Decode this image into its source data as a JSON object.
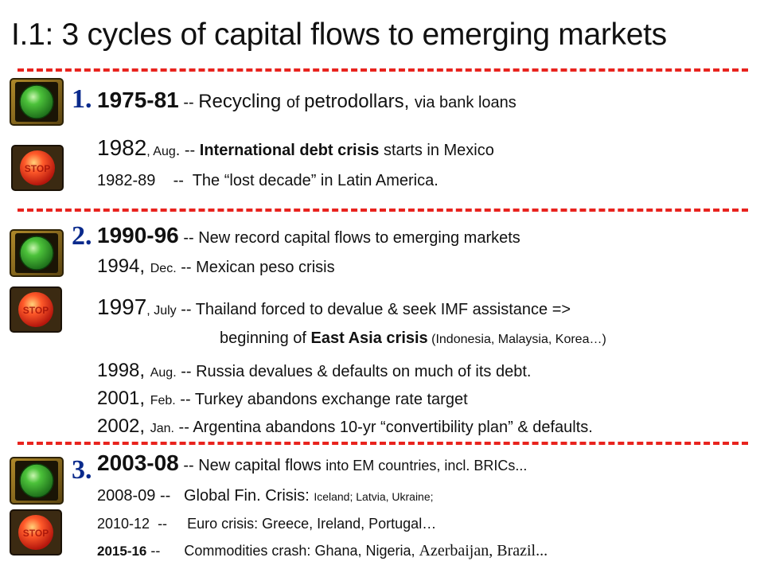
{
  "title": "I.1: 3 cycles of capital flows to emerging markets",
  "colors": {
    "divider": "#e8231e",
    "cycle_number": "#0a2a8c",
    "go": "#2faa2f",
    "stop": "#ee3322"
  },
  "cycles": [
    {
      "number": "1.",
      "lines": [
        {
          "year": "1975-81",
          "sep": " -- ",
          "text_a": "Recycling ",
          "text_b": "of ",
          "text_c": "petrodollars, ",
          "text_d": "via bank loans"
        },
        {
          "year": "1982",
          "qual": ", Aug",
          "sep": ". -- ",
          "bold_text": "International debt crisis",
          "text": " starts in Mexico"
        },
        {
          "year": "1982-89",
          "sep": "    --  ",
          "text": "The “lost decade” in Latin America."
        }
      ]
    },
    {
      "number": "2.",
      "lines": [
        {
          "year": "1990-96",
          "sep": " -- ",
          "text": "New record capital flows to emerging markets"
        },
        {
          "year": "1994, ",
          "qual": "Dec.",
          "sep": " -- ",
          "text": "Mexican peso crisis"
        },
        {
          "year": "1997",
          "qual": ", July",
          "sep": " -- ",
          "text": "Thailand forced to devalue & seek IMF assistance =>"
        },
        {
          "text_a": "beginning of ",
          "bold_text": "East Asia crisis",
          "text_b": " (Indonesia, Malaysia, Korea…)"
        },
        {
          "year": "1998, ",
          "qual": "Aug.",
          "sep": " -- ",
          "text": "Russia devalues & defaults on much of its debt."
        },
        {
          "year": "2001, ",
          "qual": "Feb.",
          "sep": " -- ",
          "text": "Turkey abandons exchange rate target"
        },
        {
          "year": "2002, ",
          "qual": "Jan.",
          "sep": " -- ",
          "text": "Argentina abandons 10-yr “convertibility plan” & defaults."
        }
      ]
    },
    {
      "number": "3.",
      "lines": [
        {
          "year": "2003-08",
          "sep": " -- ",
          "text_a": "New capital flows ",
          "text_b": "into EM countries, incl. BRICs..."
        },
        {
          "year": "2008-09",
          "sep": " --   ",
          "text_a": "Global Fin. Crisis: ",
          "text_b": "Iceland; Latvia, Ukraine;"
        },
        {
          "year": "2010-12",
          "sep": "  --     ",
          "text": "Euro crisis: Greece, Ireland, Portugal…"
        },
        {
          "year": "2015-16",
          "sep": " --      ",
          "text_a": "Commodities crash: Ghana, Nigeria, ",
          "text_b": "Azerbaijan, Brazil..."
        }
      ]
    }
  ],
  "icons": [
    "go-traffic-light-icon",
    "stop-traffic-light-icon"
  ]
}
